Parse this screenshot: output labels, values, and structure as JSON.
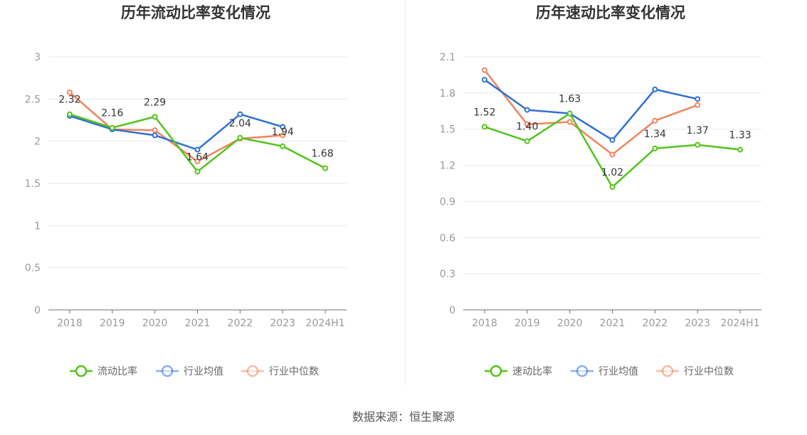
{
  "source_label": "数据来源：恒生聚源",
  "chart_data": [
    {
      "type": "line",
      "title": "历年流动比率变化情况",
      "categories": [
        "2018",
        "2019",
        "2020",
        "2021",
        "2022",
        "2023",
        "2024H1"
      ],
      "ylim": [
        0,
        3
      ],
      "yticks": [
        "0",
        "0.5",
        "1",
        "1.5",
        "2",
        "2.5",
        "3"
      ],
      "grid": true,
      "legend_position": "bottom",
      "label_series": 0,
      "series": [
        {
          "name": "流动比率",
          "color": "#52c41a",
          "values": [
            2.32,
            2.16,
            2.29,
            1.64,
            2.04,
            1.94,
            1.68
          ],
          "labels": [
            "2.32",
            "2.16",
            "2.29",
            "1.64",
            "2.04",
            "1.94",
            "1.68"
          ]
        },
        {
          "name": "行业均值",
          "color": "#2f6fd6",
          "values": [
            2.3,
            2.14,
            2.07,
            1.9,
            2.32,
            2.17,
            null
          ]
        },
        {
          "name": "行业中位数",
          "color": "#f0845c",
          "values": [
            2.58,
            2.14,
            2.13,
            1.76,
            2.03,
            2.07,
            null
          ]
        }
      ]
    },
    {
      "type": "line",
      "title": "历年速动比率变化情况",
      "categories": [
        "2018",
        "2019",
        "2020",
        "2021",
        "2022",
        "2023",
        "2024H1"
      ],
      "ylim": [
        0,
        2.1
      ],
      "yticks": [
        "0",
        "0.3",
        "0.6",
        "0.9",
        "1.2",
        "1.5",
        "1.8",
        "2.1"
      ],
      "grid": true,
      "legend_position": "bottom",
      "label_series": 0,
      "series": [
        {
          "name": "速动比率",
          "color": "#52c41a",
          "values": [
            1.52,
            1.4,
            1.63,
            1.02,
            1.34,
            1.37,
            1.33
          ],
          "labels": [
            "1.52",
            "1.40",
            "1.63",
            "1.02",
            "1.34",
            "1.37",
            "1.33"
          ]
        },
        {
          "name": "行业均值",
          "color": "#2f6fd6",
          "values": [
            1.91,
            1.66,
            1.63,
            1.41,
            1.83,
            1.75,
            null
          ]
        },
        {
          "name": "行业中位数",
          "color": "#f0845c",
          "values": [
            1.99,
            1.54,
            1.56,
            1.29,
            1.57,
            1.7,
            null
          ]
        }
      ]
    }
  ]
}
